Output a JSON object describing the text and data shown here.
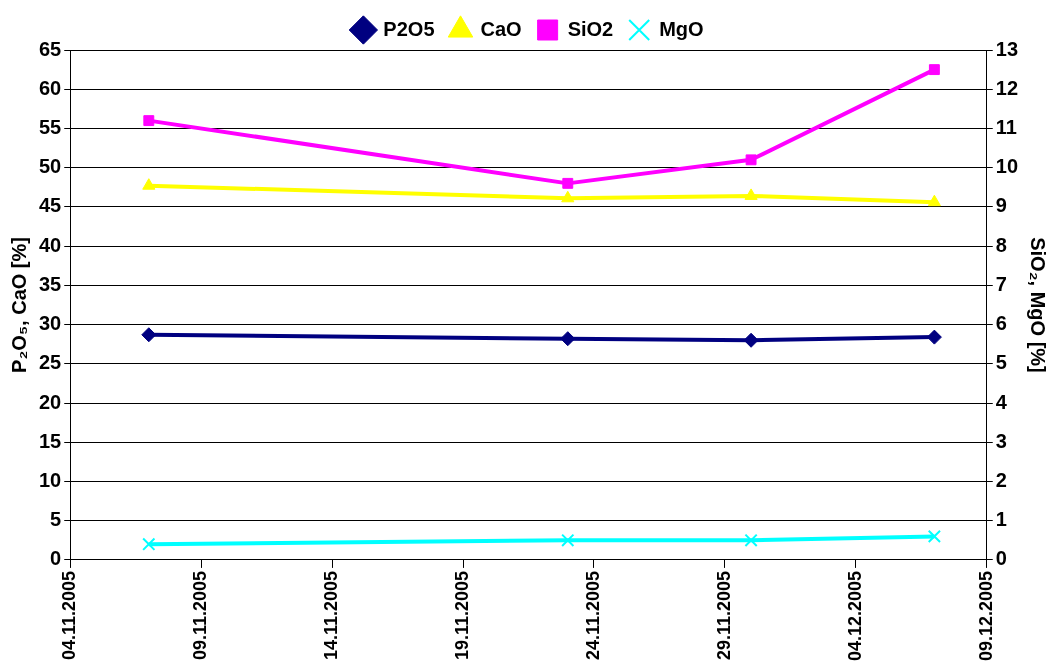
{
  "chart_data": {
    "type": "line",
    "x": [
      "2005-11-07",
      "2005-11-23",
      "2005-11-30",
      "2005-12-07"
    ],
    "series": [
      {
        "name": "P2O5",
        "color": "#000080",
        "marker": "diamond",
        "values": [
          28.7,
          28.2,
          28.0,
          28.4
        ]
      },
      {
        "name": "CaO",
        "color": "#ffff00",
        "marker": "triangle",
        "values": [
          47.7,
          46.1,
          46.4,
          45.6
        ]
      },
      {
        "name": "SiO2",
        "color": "#ff00ff",
        "marker": "square",
        "axis": "y2",
        "values": [
          11.2,
          9.6,
          10.2,
          12.5
        ]
      },
      {
        "name": "MgO",
        "color": "#00ffff",
        "marker": "cross",
        "axis": "y2",
        "values": [
          0.4,
          0.5,
          0.5,
          0.6
        ]
      }
    ],
    "ylabel": "P₂O₅, CaO [%]",
    "y2label": "SiO₂, MgO [%]",
    "xlim": [
      "2005-11-04",
      "2005-12-09"
    ],
    "xticks": [
      {
        "value": "2005-11-04",
        "label": "04.11.2005"
      },
      {
        "value": "2005-11-09",
        "label": "09.11.2005"
      },
      {
        "value": "2005-11-14",
        "label": "14.11.2005"
      },
      {
        "value": "2005-11-19",
        "label": "19.11.2005"
      },
      {
        "value": "2005-11-24",
        "label": "24.11.2005"
      },
      {
        "value": "2005-11-29",
        "label": "29.11.2005"
      },
      {
        "value": "2005-12-04",
        "label": "04.12.2005"
      },
      {
        "value": "2005-12-09",
        "label": "09.12.2005"
      }
    ],
    "ylim": [
      0,
      65
    ],
    "yticks": [
      0,
      5,
      10,
      15,
      20,
      25,
      30,
      35,
      40,
      45,
      50,
      55,
      60,
      65
    ],
    "y2lim": [
      0,
      13
    ],
    "y2ticks": [
      0,
      1,
      2,
      3,
      4,
      5,
      6,
      7,
      8,
      9,
      10,
      11,
      12,
      13
    ],
    "grid": "y",
    "legend": "top",
    "line_style": "solid"
  }
}
